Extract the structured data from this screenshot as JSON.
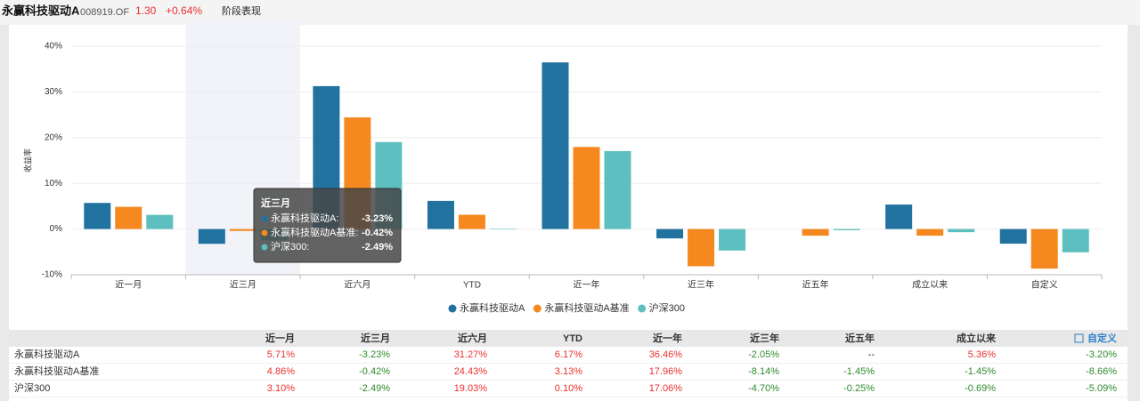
{
  "header": {
    "title": "永赢科技驱动A",
    "code": "008919.OF",
    "nav": "1.30",
    "change": "+0.64%",
    "tab": "阶段表现"
  },
  "chart_data": {
    "type": "bar",
    "y_label": "收益率",
    "categories": [
      "近一月",
      "近三月",
      "近六月",
      "YTD",
      "近一年",
      "近三年",
      "近五年",
      "成立以来",
      "自定义"
    ],
    "series": [
      {
        "name": "永赢科技驱动A",
        "color": "#22729f",
        "values": [
          5.71,
          -3.23,
          31.27,
          6.17,
          36.46,
          -2.05,
          null,
          5.36,
          -3.2
        ],
        "value_labels": [
          "5.71%",
          "-3.23%",
          "31.27%",
          "6.17%",
          "36.46%",
          "-2.05%",
          "--",
          "5.36%",
          "-3.20%"
        ]
      },
      {
        "name": "永赢科技驱动A基准",
        "color": "#f5891f",
        "values": [
          4.86,
          -0.42,
          24.43,
          3.13,
          17.96,
          -8.14,
          -1.45,
          -1.45,
          -8.66
        ],
        "value_labels": [
          "4.86%",
          "-0.42%",
          "24.43%",
          "3.13%",
          "17.96%",
          "-8.14%",
          "-1.45%",
          "-1.45%",
          "-8.66%"
        ]
      },
      {
        "name": "沪深300",
        "color": "#5dbfc0",
        "values": [
          3.1,
          -2.49,
          19.03,
          0.1,
          17.06,
          -4.7,
          -0.25,
          -0.69,
          -5.09
        ],
        "value_labels": [
          "3.10%",
          "-2.49%",
          "19.03%",
          "0.10%",
          "17.06%",
          "-4.70%",
          "-0.25%",
          "-0.69%",
          "-5.09%"
        ]
      }
    ],
    "ylim": [
      -10,
      40
    ],
    "yticks": [
      {
        "value": -10,
        "label": "-10%"
      },
      {
        "value": 0,
        "label": "0%"
      },
      {
        "value": 10,
        "label": "10%"
      },
      {
        "value": 20,
        "label": "20%"
      },
      {
        "value": 30,
        "label": "30%"
      },
      {
        "value": 40,
        "label": "40%"
      }
    ],
    "grid": true,
    "highlight": 1,
    "tooltip": {
      "labels": [
        "永赢科技驱动A:",
        "永赢科技驱动A基准:",
        "沪深300:"
      ]
    }
  }
}
